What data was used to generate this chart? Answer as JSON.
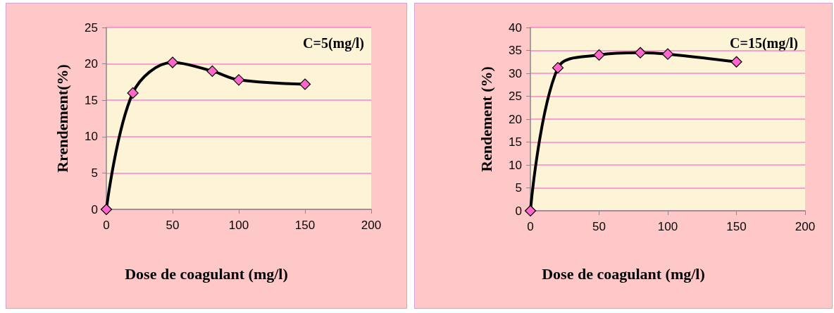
{
  "chart_data": [
    {
      "type": "line",
      "xlabel": "Dose de coagulant (mg/l)",
      "ylabel": "Rrendement(%)",
      "annotations": [
        "C=5(mg/l)"
      ],
      "x": [
        0,
        20,
        50,
        80,
        100,
        150
      ],
      "series": [
        {
          "color": "#000000",
          "colors": [
            "#ff66cc",
            "#ff66cc",
            "#ff66cc",
            "#ff66cc",
            "#ff66cc",
            "#ff66cc"
          ],
          "values": [
            0,
            16,
            20.2,
            19,
            17.8,
            17.2
          ]
        }
      ],
      "xlim": [
        0,
        200
      ],
      "xticks": [
        0,
        50,
        100,
        150,
        200
      ],
      "ylim": [
        0,
        25
      ],
      "yticks": [
        0,
        5,
        10,
        15,
        20,
        25
      ],
      "grid": "y",
      "marker": "diamond",
      "line_style": "solid"
    },
    {
      "type": "line",
      "xlabel": "Dose de coagulant (mg/l)",
      "ylabel": "Rendement (%)",
      "annotations": [
        "C=15(mg/l)"
      ],
      "x": [
        0,
        20,
        50,
        80,
        100,
        150
      ],
      "series": [
        {
          "color": "#000000",
          "colors": [
            "#ff66cc",
            "#ff66cc",
            "#ff66cc",
            "#ff66cc",
            "#ff66cc",
            "#ff66cc"
          ],
          "values": [
            0,
            31.2,
            34,
            34.5,
            34.2,
            32.5
          ]
        }
      ],
      "xlim": [
        0,
        200
      ],
      "xticks": [
        0,
        50,
        100,
        150,
        200
      ],
      "ylim": [
        0,
        40
      ],
      "yticks": [
        0,
        5,
        10,
        15,
        20,
        25,
        30,
        35,
        40
      ],
      "grid": "y",
      "marker": "diamond",
      "line_style": "solid"
    }
  ]
}
